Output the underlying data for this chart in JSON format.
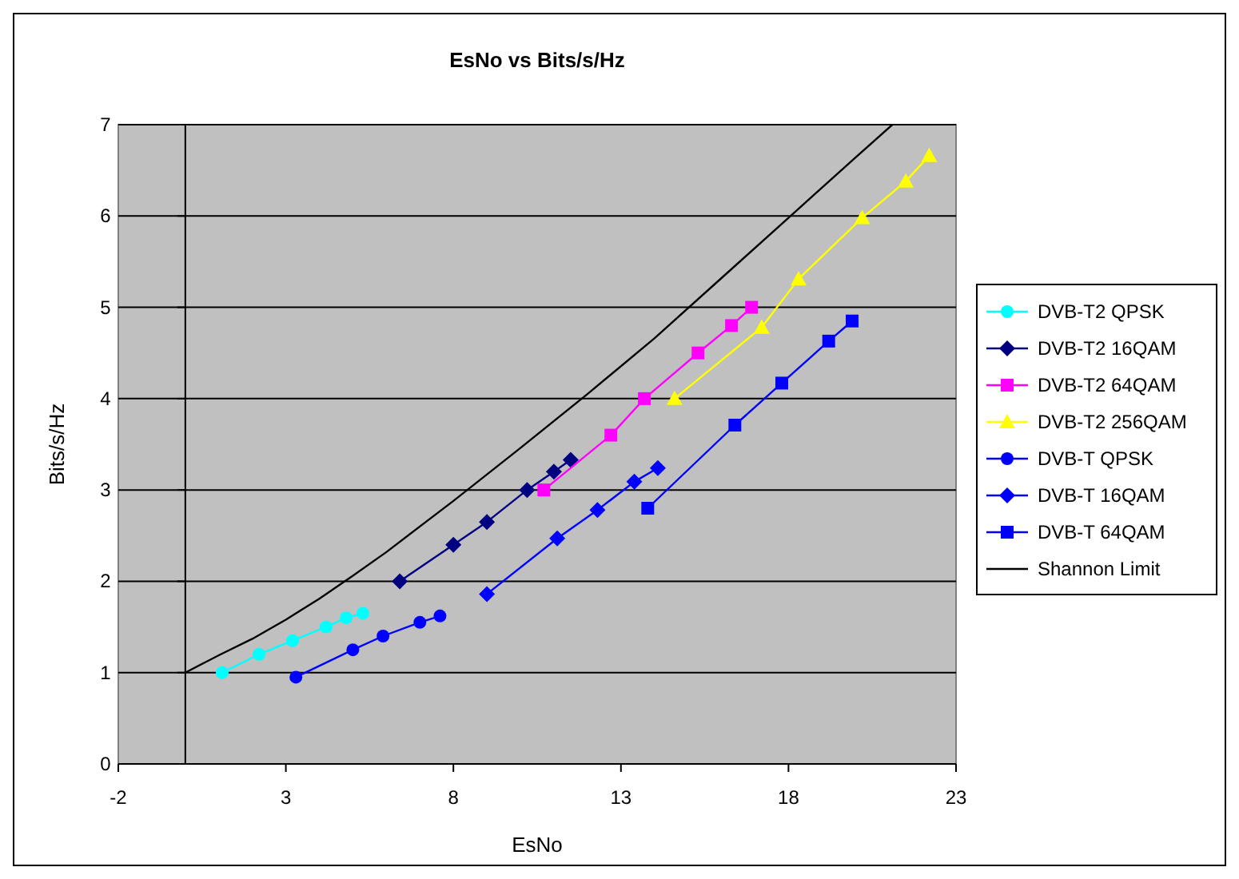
{
  "chart_data": {
    "type": "line",
    "title": "EsNo vs Bits/s/Hz",
    "xlabel": "EsNo",
    "ylabel": "Bits/s/Hz",
    "xlim": [
      -2,
      23
    ],
    "ylim": [
      0,
      7
    ],
    "xticks": [
      -2,
      3,
      8,
      13,
      18,
      23
    ],
    "yticks": [
      0,
      1,
      2,
      3,
      4,
      5,
      6,
      7
    ],
    "grid": "y",
    "legend": "right",
    "line_style": "solid",
    "series": [
      {
        "name": "DVB-T2 QPSK",
        "color": "#00ffff",
        "marker": "circle",
        "x": [
          1.1,
          2.2,
          3.2,
          4.2,
          4.8,
          5.3
        ],
        "values": [
          1.0,
          1.2,
          1.35,
          1.5,
          1.6,
          1.65
        ]
      },
      {
        "name": "DVB-T2 16QAM",
        "color": "#000080",
        "marker": "diamond",
        "x": [
          6.4,
          8.0,
          9.0,
          10.2,
          11.0,
          11.5
        ],
        "values": [
          2.0,
          2.4,
          2.65,
          3.0,
          3.2,
          3.33
        ]
      },
      {
        "name": "DVB-T2 64QAM",
        "color": "#ff00ff",
        "marker": "square",
        "x": [
          10.7,
          12.7,
          13.7,
          15.3,
          16.3,
          16.9
        ],
        "values": [
          3.0,
          3.6,
          4.0,
          4.5,
          4.8,
          5.0
        ]
      },
      {
        "name": "DVB-T2 256QAM",
        "color": "#ffff00",
        "marker": "triangle",
        "x": [
          14.6,
          17.2,
          18.3,
          20.2,
          21.5,
          22.2
        ],
        "values": [
          4.0,
          4.78,
          5.31,
          5.98,
          6.38,
          6.66
        ]
      },
      {
        "name": "DVB-T QPSK",
        "color": "#0000ff",
        "marker": "circle",
        "x": [
          3.3,
          5.0,
          5.9,
          7.0,
          7.6
        ],
        "values": [
          0.95,
          1.25,
          1.4,
          1.55,
          1.62
        ]
      },
      {
        "name": "DVB-T 16QAM",
        "color": "#0000ff",
        "marker": "diamond",
        "x": [
          9.0,
          11.1,
          12.3,
          13.4,
          14.1
        ],
        "values": [
          1.86,
          2.47,
          2.78,
          3.09,
          3.24
        ]
      },
      {
        "name": "DVB-T 64QAM",
        "color": "#0000ff",
        "marker": "square",
        "x": [
          13.8,
          16.4,
          17.8,
          19.2,
          19.9
        ],
        "values": [
          2.8,
          3.71,
          4.17,
          4.63,
          4.85
        ]
      },
      {
        "name": "Shannon Limit",
        "color": "#000000",
        "marker": "none",
        "x": [
          0,
          1,
          2,
          3,
          4,
          5,
          6,
          8,
          10,
          12,
          14,
          16,
          18,
          20,
          21.1
        ],
        "values": [
          1.0,
          1.19,
          1.37,
          1.58,
          1.81,
          2.06,
          2.32,
          2.88,
          3.46,
          4.05,
          4.66,
          5.32,
          5.98,
          6.64,
          7.0
        ]
      }
    ]
  }
}
